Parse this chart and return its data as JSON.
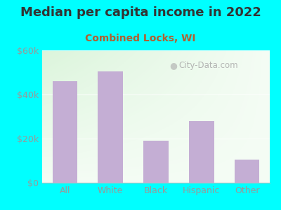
{
  "title": "Median per capita income in 2022",
  "subtitle": "Combined Locks, WI",
  "categories": [
    "All",
    "White",
    "Black",
    "Hispanic",
    "Other"
  ],
  "values": [
    46000,
    50500,
    19000,
    28000,
    10500
  ],
  "bar_color": "#c4aed4",
  "background_outer": "#00ffff",
  "background_inner_topleft": "#d6edd8",
  "background_inner_center": "#e8f5ea",
  "background_inner_right": "#f0f0f8",
  "title_color": "#333333",
  "subtitle_color": "#b06030",
  "tick_color": "#999999",
  "ylim": [
    0,
    60000
  ],
  "yticks": [
    0,
    20000,
    40000,
    60000
  ],
  "ytick_labels": [
    "$0",
    "$20k",
    "$40k",
    "$60k"
  ],
  "watermark_text": "City-Data.com",
  "title_fontsize": 13,
  "subtitle_fontsize": 10,
  "tick_fontsize": 9
}
